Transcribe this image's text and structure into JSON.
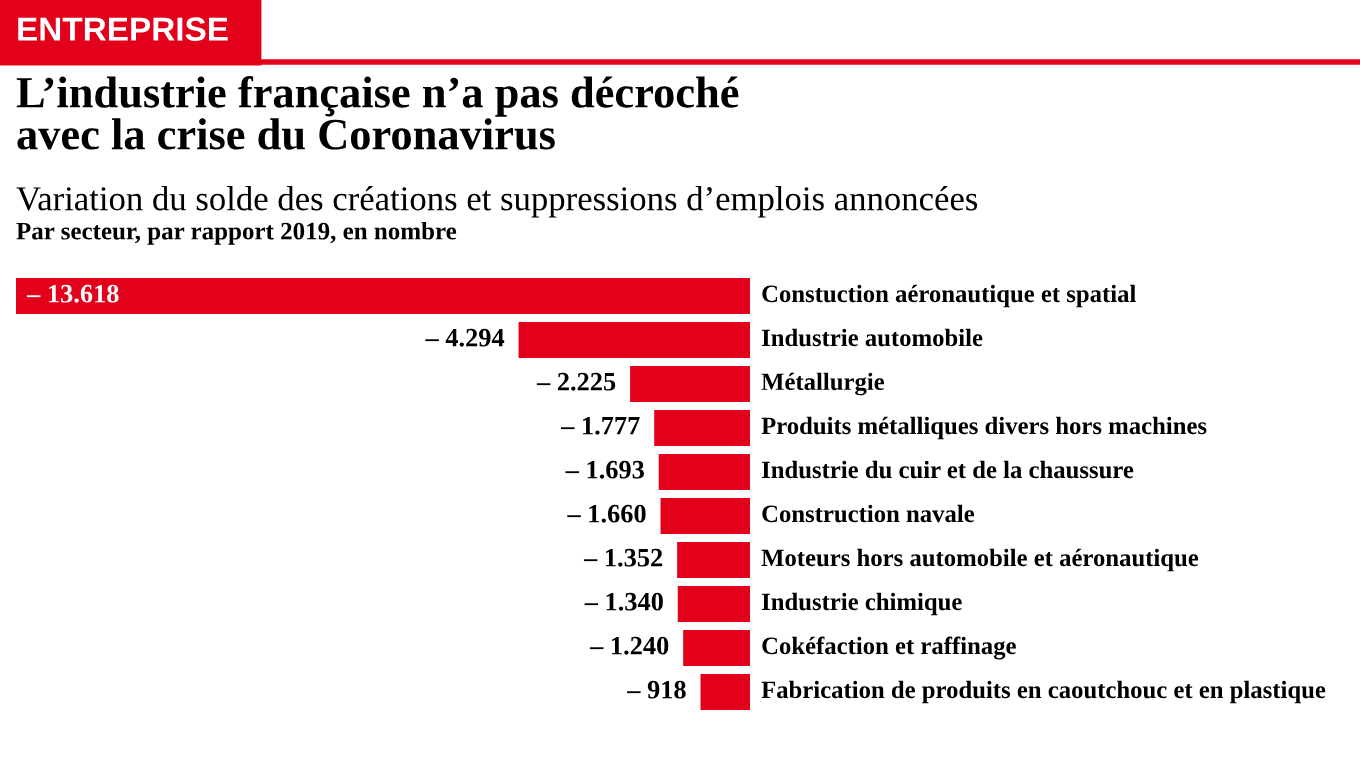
{
  "chart_data": {
    "type": "bar",
    "orientation": "horizontal",
    "title": "L’industrie française n’a pas décroché\navec la crise du Coronavirus",
    "subtitle": "Variation du solde des créations et suppressions d’emplois annoncées",
    "xlabel": "Par secteur, par rapport 2019, en nombre",
    "annotations": [
      "ENTREPRISE"
    ],
    "categories": [
      "Constuction aéronautique et spatial",
      "Industrie automobile",
      "Métallurgie",
      "Produits métalliques divers hors machines",
      "Industrie du cuir et de la chaussure",
      "Construction navale",
      "Moteurs hors automobile et aéronautique",
      "Industrie chimique",
      "Cokéfaction et raffinage",
      "Fabrication de produits en caoutchouc et en plastique"
    ],
    "values": [
      -13618,
      -4294,
      -2225,
      -1777,
      -1693,
      -1660,
      -1352,
      -1340,
      -1240,
      -918
    ],
    "value_labels": [
      "– 13.618",
      "– 4.294",
      "– 2.225",
      "– 1.777",
      "– 1.693",
      "– 1.660",
      "– 1.352",
      "– 1.340",
      "– 1.240",
      "– 918"
    ],
    "color": "#e2001a"
  }
}
